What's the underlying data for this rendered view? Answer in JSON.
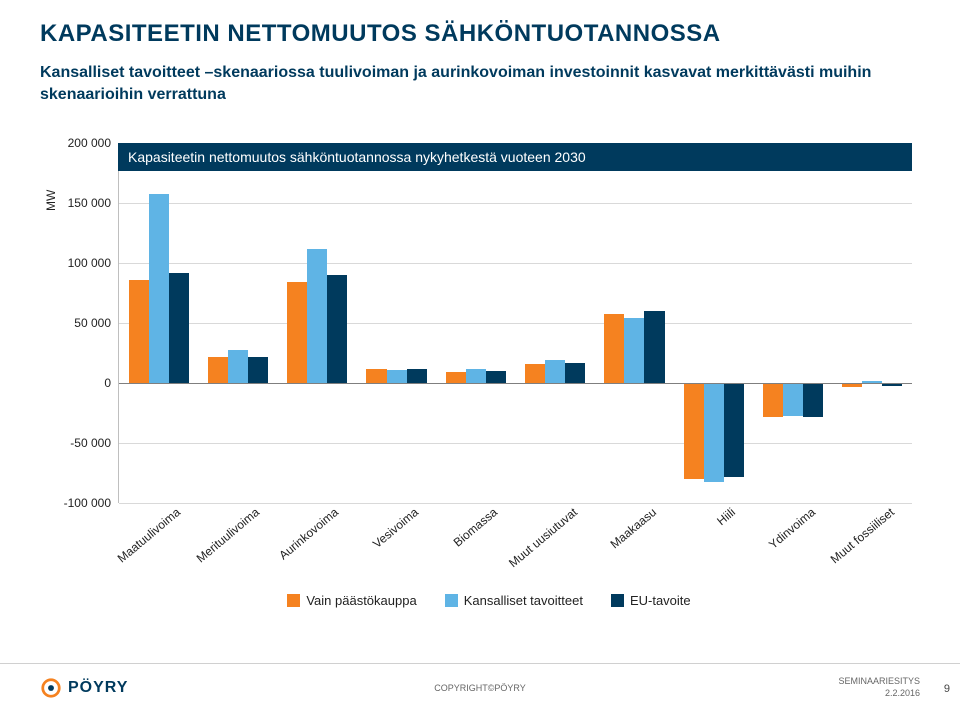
{
  "page": {
    "title": "KAPASITEETIN NETTOMUUTOS SÄHKÖNTUOTANNOSSA",
    "subtitle": "Kansalliset tavoitteet –skenaariossa tuulivoiman ja aurinkovoiman investoinnit kasvavat merkittävästi muihin skenaarioihin verrattuna",
    "chart_banner": "Kapasiteetin nettomuutos sähköntuotannossa nykyhetkestä vuoteen 2030",
    "ylabel": "MW"
  },
  "chart": {
    "type": "bar",
    "ylim": [
      -100000,
      200000
    ],
    "ytick_step": 50000,
    "yticks": [
      -100000,
      -50000,
      0,
      50000,
      100000,
      150000,
      200000
    ],
    "ytick_labels": [
      "-100 000",
      "-50 000",
      "0",
      "50 000",
      "100 000",
      "150 000",
      "200 000"
    ],
    "grid_color": "#d9d9d9",
    "axis_color": "#bfbfbf",
    "baseline_color": "#7f7f7f",
    "background_color": "#ffffff",
    "categories": [
      "Maatuulivoima",
      "Merituulivoima",
      "Aurinkovoima",
      "Vesivoima",
      "Biomassa",
      "Muut uusiutuvat",
      "Maakaasu",
      "Hiili",
      "Ydinvoima",
      "Muut fossiiliset"
    ],
    "series": [
      {
        "name": "Vain päästökauppa",
        "color": "#f58220",
        "values": [
          86000,
          22000,
          84000,
          12000,
          9000,
          16000,
          58000,
          -80000,
          -28000,
          -3000
        ]
      },
      {
        "name": "Kansalliset tavoitteet",
        "color": "#5fb4e5",
        "values": [
          158000,
          28000,
          112000,
          11000,
          12000,
          19000,
          54000,
          -82000,
          -27000,
          2000
        ]
      },
      {
        "name": "EU-tavoite",
        "color": "#003a5d",
        "values": [
          92000,
          22000,
          90000,
          12000,
          10000,
          17000,
          60000,
          -78000,
          -28000,
          -2000
        ]
      }
    ],
    "bar_group_width": 0.76,
    "title_fontsize": 24,
    "label_fontsize": 12,
    "legend_fontsize": 13,
    "xtick_rotation": -40
  },
  "footer": {
    "copyright": "COPYRIGHT©PÖYRY",
    "right_line1": "SEMINAARIESITYS",
    "right_line2": "2.2.2016",
    "page_number": "9",
    "logo_text": "PÖYRY",
    "logo_colors": {
      "ring": "#f58220",
      "dot": "#003a5d"
    }
  }
}
